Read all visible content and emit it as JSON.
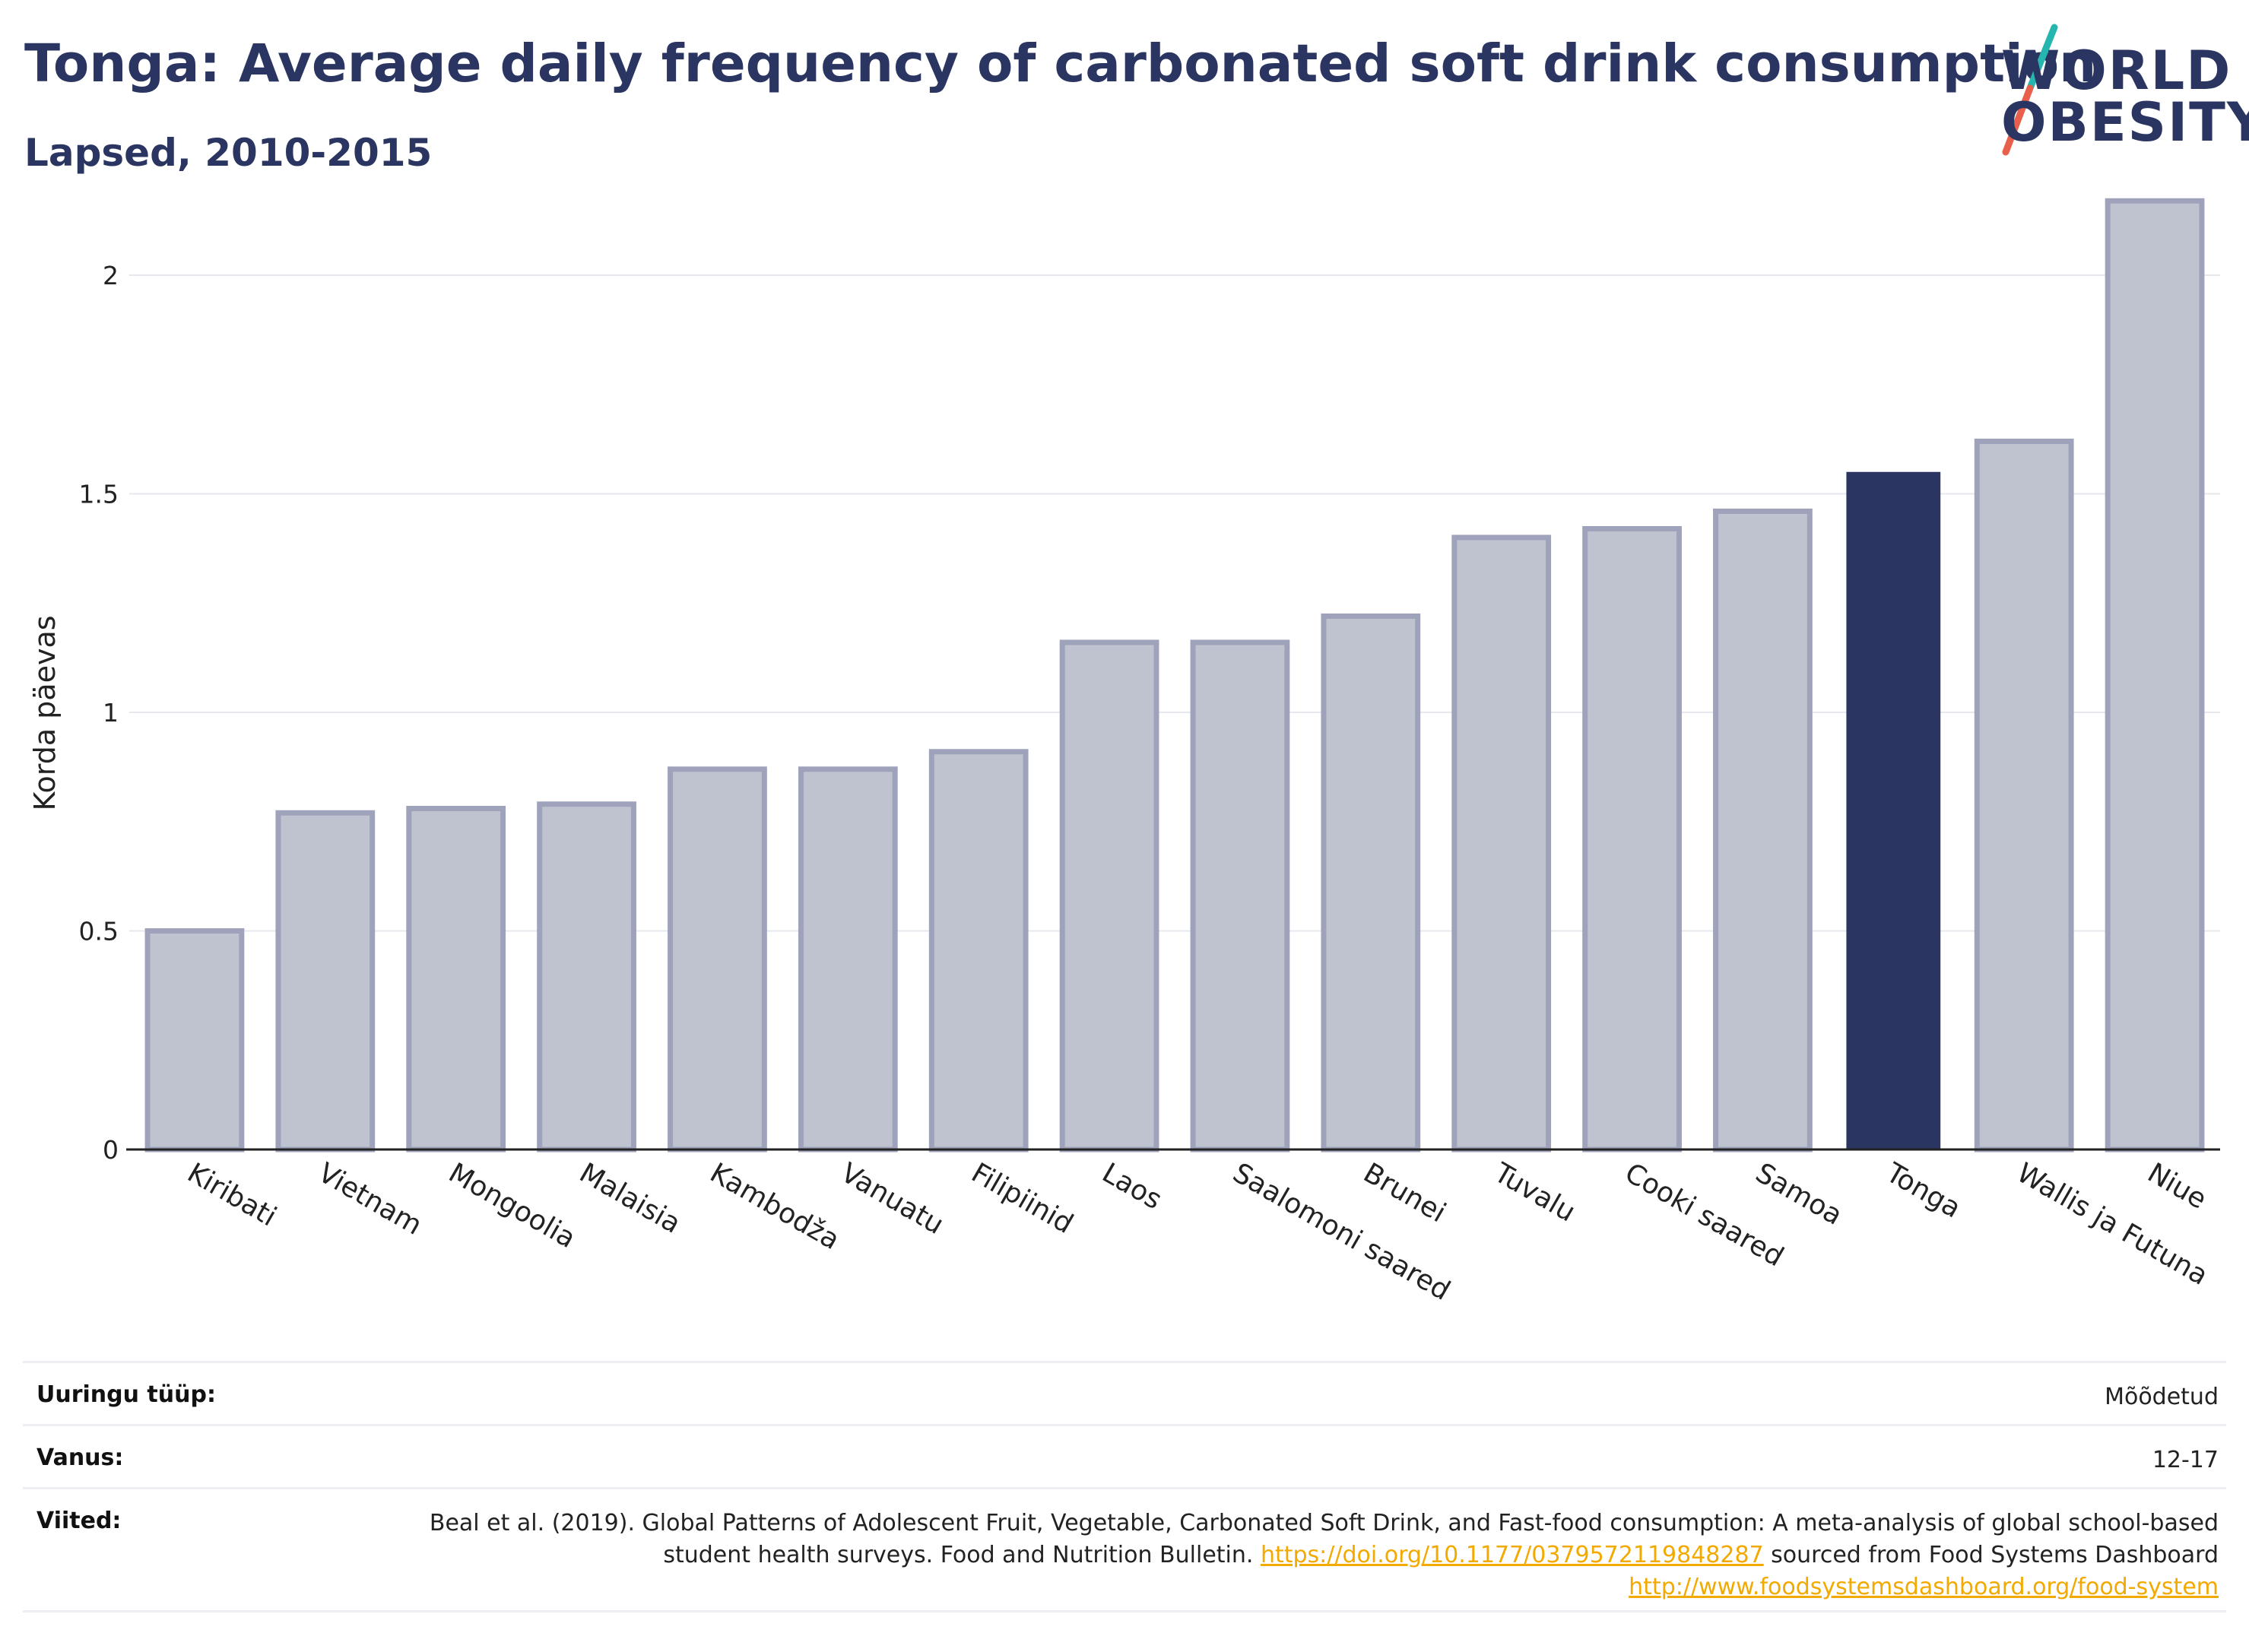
{
  "header": {
    "title": "Tonga: Average daily frequency of carbonated soft drink consumption",
    "subtitle": "Lapsed, 2010-2015"
  },
  "logo": {
    "line1": "WORLD",
    "line2": "OBESITY",
    "accent_colors": [
      "#26b6b0",
      "#e8604c"
    ]
  },
  "chart_data": {
    "type": "bar",
    "title": "Tonga: Average daily frequency of carbonated soft drink consumption",
    "subtitle": "Lapsed, 2010-2015",
    "xlabel": "",
    "ylabel": "Korda päevas",
    "ylim": [
      0,
      2.2
    ],
    "yticks": [
      0,
      0.5,
      1,
      1.5,
      2
    ],
    "ytick_labels": [
      "0",
      "0.5",
      "1",
      "1.5",
      "2"
    ],
    "grid": true,
    "categories": [
      "Kiribati",
      "Vietnam",
      "Mongoolia",
      "Malaisia",
      "Kambodža",
      "Vanuatu",
      "Filipiinid",
      "Laos",
      "Saalomoni saared",
      "Brunei",
      "Tuvalu",
      "Cooki saared",
      "Samoa",
      "Tonga",
      "Wallis ja Futuna",
      "Niue"
    ],
    "values": [
      0.5,
      0.77,
      0.78,
      0.79,
      0.87,
      0.87,
      0.91,
      1.16,
      1.16,
      1.22,
      1.4,
      1.42,
      1.46,
      1.55,
      1.62,
      2.17
    ],
    "highlight": "Tonga",
    "colors": {
      "bar_fill": "#bfc3cf",
      "bar_stroke": "#9ea3bb",
      "highlight_fill": "#2b3561",
      "grid": "#e6e8ee",
      "axis": "#222222"
    }
  },
  "meta": {
    "rows": [
      {
        "label": "Uuringu tüüp:",
        "value": "Mõõdetud"
      },
      {
        "label": "Vanus:",
        "value": "12-17"
      }
    ],
    "references": {
      "label": "Viited:",
      "text1": "Beal et al. (2019). Global Patterns of Adolescent Fruit, Vegetable, Carbonated Soft Drink, and Fast-food consumption: A meta-analysis of global school-based student health surveys. Food and Nutrition Bulletin. ",
      "link1": "https://doi.org/10.1177/0379572119848287",
      "text2": " sourced from Food Systems Dashboard ",
      "link2": "http://www.foodsystemsdashboard.org/food-system"
    }
  }
}
